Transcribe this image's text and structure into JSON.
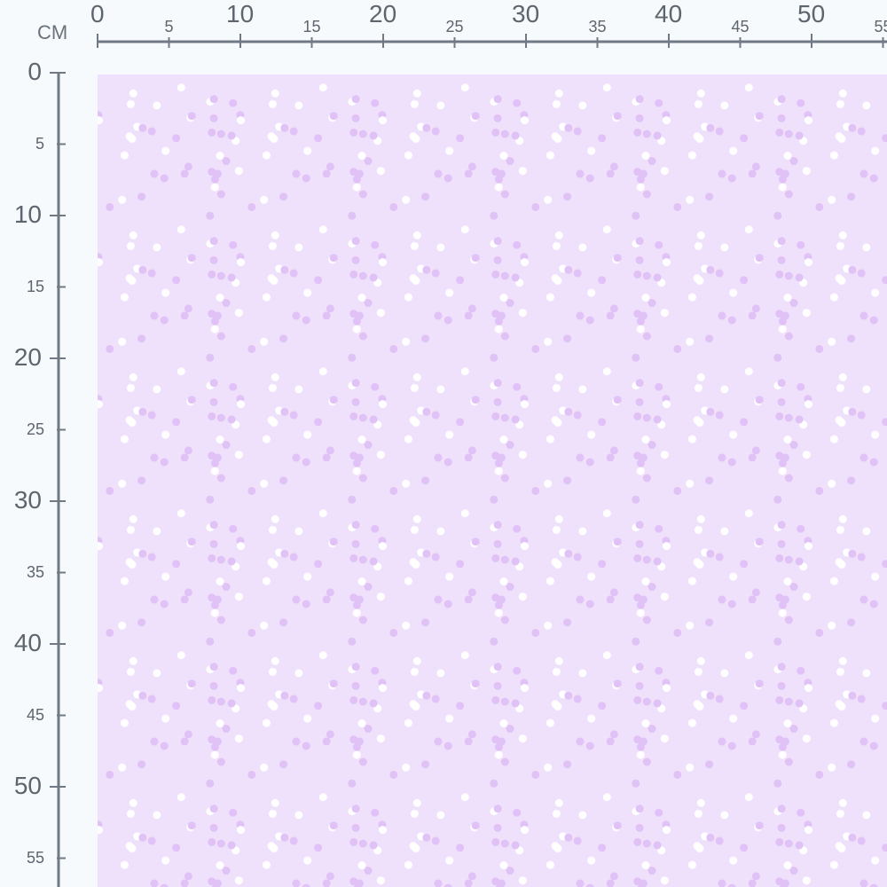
{
  "ruler": {
    "unit": "CM",
    "top_labels": [
      "0",
      "5",
      "10",
      "15",
      "20",
      "25",
      "30",
      "35",
      "40",
      "45",
      "50",
      "55"
    ],
    "left_labels": [
      "0",
      "5",
      "10",
      "15",
      "20",
      "25",
      "30",
      "35",
      "40",
      "45",
      "50",
      "55"
    ],
    "color": "#6f7a84"
  },
  "fabric": {
    "pattern": "scattered polka dots",
    "background_color": "#efe1fb",
    "dot_colors": [
      "#e0c2f6",
      "#ffffff"
    ]
  }
}
